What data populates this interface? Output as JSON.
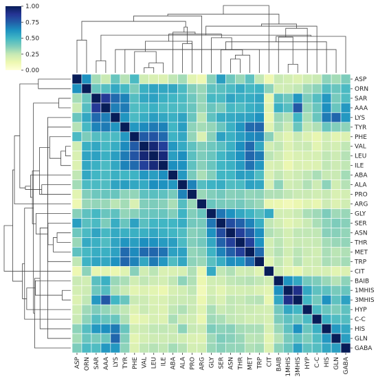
{
  "chart_data": {
    "type": "heatmap",
    "title": "",
    "xlabel": "",
    "ylabel": "",
    "labels": [
      "ASP",
      "ORN",
      "SAR",
      "AAA",
      "LYS",
      "TYR",
      "PHE",
      "VAL",
      "LEU",
      "ILE",
      "ABA",
      "ALA",
      "PRO",
      "ARG",
      "GLY",
      "SER",
      "ASN",
      "THR",
      "MET",
      "TRP",
      "CIT",
      "BAIB",
      "1MHIS",
      "3MHIS",
      "HYP",
      "C-C",
      "HIS",
      "GLN",
      "GABA"
    ],
    "colorbar": {
      "range": [
        0,
        1
      ],
      "ticks": [
        "0.00",
        "0.25",
        "0.50",
        "0.75",
        "1.00"
      ],
      "colormap": "YlGnBu",
      "stops": [
        "#ffffd9",
        "#edf8b1",
        "#c7e9b4",
        "#7fcdbb",
        "#41b6c4",
        "#1d91c0",
        "#225ea8",
        "#253494",
        "#081d58"
      ]
    },
    "dendrograms": {
      "row": "left",
      "col": "top"
    },
    "grid": true,
    "values": [
      [
        1.0,
        0.62,
        0.31,
        0.24,
        0.42,
        0.28,
        0.48,
        0.22,
        0.19,
        0.18,
        0.26,
        0.31,
        0.16,
        0.12,
        0.36,
        0.58,
        0.41,
        0.33,
        0.44,
        0.26,
        0.12,
        0.24,
        0.21,
        0.18,
        0.22,
        0.24,
        0.35,
        0.31,
        0.38
      ],
      [
        0.62,
        1.0,
        0.42,
        0.46,
        0.55,
        0.49,
        0.38,
        0.52,
        0.56,
        0.55,
        0.55,
        0.48,
        0.37,
        0.33,
        0.44,
        0.45,
        0.48,
        0.54,
        0.49,
        0.51,
        0.35,
        0.22,
        0.23,
        0.26,
        0.32,
        0.35,
        0.46,
        0.42,
        0.48
      ],
      [
        0.31,
        0.42,
        1.0,
        0.86,
        0.72,
        0.66,
        0.46,
        0.55,
        0.57,
        0.52,
        0.5,
        0.48,
        0.41,
        0.34,
        0.49,
        0.48,
        0.56,
        0.52,
        0.53,
        0.56,
        0.14,
        0.45,
        0.41,
        0.6,
        0.38,
        0.46,
        0.6,
        0.39,
        0.47
      ],
      [
        0.24,
        0.46,
        0.86,
        1.0,
        0.67,
        0.68,
        0.47,
        0.49,
        0.52,
        0.48,
        0.48,
        0.47,
        0.42,
        0.33,
        0.42,
        0.38,
        0.49,
        0.47,
        0.52,
        0.55,
        0.16,
        0.52,
        0.46,
        0.77,
        0.34,
        0.42,
        0.63,
        0.42,
        0.6
      ],
      [
        0.42,
        0.55,
        0.72,
        0.67,
        1.0,
        0.61,
        0.48,
        0.53,
        0.58,
        0.55,
        0.52,
        0.56,
        0.42,
        0.27,
        0.44,
        0.53,
        0.54,
        0.56,
        0.57,
        0.62,
        0.13,
        0.33,
        0.29,
        0.5,
        0.3,
        0.42,
        0.68,
        0.73,
        0.6
      ],
      [
        0.28,
        0.49,
        0.66,
        0.68,
        0.61,
        1.0,
        0.6,
        0.64,
        0.68,
        0.66,
        0.5,
        0.58,
        0.35,
        0.31,
        0.34,
        0.42,
        0.52,
        0.61,
        0.72,
        0.73,
        0.17,
        0.3,
        0.24,
        0.42,
        0.26,
        0.29,
        0.42,
        0.37,
        0.35
      ],
      [
        0.48,
        0.38,
        0.46,
        0.47,
        0.48,
        0.6,
        1.0,
        0.76,
        0.78,
        0.72,
        0.51,
        0.55,
        0.34,
        0.19,
        0.36,
        0.57,
        0.52,
        0.58,
        0.64,
        0.66,
        0.36,
        0.22,
        0.16,
        0.24,
        0.18,
        0.14,
        0.22,
        0.16,
        0.18
      ],
      [
        0.22,
        0.52,
        0.55,
        0.49,
        0.53,
        0.64,
        0.76,
        1.0,
        0.94,
        0.84,
        0.6,
        0.54,
        0.44,
        0.37,
        0.41,
        0.45,
        0.52,
        0.63,
        0.72,
        0.55,
        0.22,
        0.26,
        0.18,
        0.23,
        0.24,
        0.16,
        0.23,
        0.21,
        0.26
      ],
      [
        0.19,
        0.56,
        0.57,
        0.52,
        0.58,
        0.68,
        0.78,
        0.94,
        1.0,
        0.93,
        0.58,
        0.63,
        0.45,
        0.38,
        0.42,
        0.5,
        0.55,
        0.62,
        0.73,
        0.68,
        0.27,
        0.23,
        0.16,
        0.19,
        0.2,
        0.2,
        0.26,
        0.23,
        0.28
      ],
      [
        0.18,
        0.55,
        0.52,
        0.48,
        0.55,
        0.66,
        0.72,
        0.84,
        0.93,
        1.0,
        0.63,
        0.62,
        0.44,
        0.36,
        0.42,
        0.5,
        0.52,
        0.59,
        0.7,
        0.6,
        0.19,
        0.21,
        0.13,
        0.19,
        0.18,
        0.18,
        0.26,
        0.23,
        0.26
      ],
      [
        0.26,
        0.55,
        0.5,
        0.48,
        0.52,
        0.5,
        0.51,
        0.6,
        0.58,
        0.63,
        1.0,
        0.6,
        0.39,
        0.3,
        0.37,
        0.5,
        0.5,
        0.58,
        0.57,
        0.47,
        0.19,
        0.26,
        0.2,
        0.23,
        0.26,
        0.3,
        0.25,
        0.24,
        0.31
      ],
      [
        0.31,
        0.48,
        0.48,
        0.47,
        0.56,
        0.58,
        0.55,
        0.54,
        0.63,
        0.62,
        0.6,
        1.0,
        0.66,
        0.46,
        0.51,
        0.53,
        0.47,
        0.48,
        0.57,
        0.55,
        0.2,
        0.35,
        0.22,
        0.24,
        0.29,
        0.23,
        0.35,
        0.22,
        0.28
      ],
      [
        0.16,
        0.37,
        0.41,
        0.42,
        0.42,
        0.35,
        0.34,
        0.44,
        0.45,
        0.44,
        0.39,
        0.66,
        1.0,
        0.33,
        0.37,
        0.4,
        0.36,
        0.37,
        0.34,
        0.35,
        0.29,
        0.29,
        0.26,
        0.24,
        0.24,
        0.22,
        0.25,
        0.19,
        0.21
      ],
      [
        0.12,
        0.33,
        0.34,
        0.33,
        0.27,
        0.31,
        0.19,
        0.37,
        0.38,
        0.36,
        0.3,
        0.46,
        0.33,
        1.0,
        0.42,
        0.39,
        0.38,
        0.4,
        0.36,
        0.33,
        0.14,
        0.13,
        0.1,
        0.13,
        0.17,
        0.14,
        0.23,
        0.18,
        0.22
      ],
      [
        0.36,
        0.44,
        0.49,
        0.42,
        0.44,
        0.34,
        0.36,
        0.41,
        0.42,
        0.42,
        0.37,
        0.51,
        0.37,
        0.42,
        1.0,
        0.69,
        0.62,
        0.55,
        0.51,
        0.45,
        0.54,
        0.22,
        0.21,
        0.24,
        0.3,
        0.32,
        0.38,
        0.32,
        0.33
      ],
      [
        0.58,
        0.45,
        0.48,
        0.38,
        0.53,
        0.42,
        0.57,
        0.45,
        0.5,
        0.5,
        0.5,
        0.53,
        0.4,
        0.39,
        0.69,
        1.0,
        0.8,
        0.74,
        0.66,
        0.53,
        0.26,
        0.22,
        0.16,
        0.19,
        0.24,
        0.3,
        0.35,
        0.38,
        0.36
      ],
      [
        0.41,
        0.48,
        0.56,
        0.49,
        0.54,
        0.52,
        0.52,
        0.52,
        0.55,
        0.52,
        0.5,
        0.47,
        0.36,
        0.38,
        0.62,
        0.8,
        1.0,
        0.84,
        0.75,
        0.63,
        0.29,
        0.26,
        0.21,
        0.26,
        0.26,
        0.26,
        0.36,
        0.36,
        0.34
      ],
      [
        0.33,
        0.54,
        0.52,
        0.47,
        0.56,
        0.61,
        0.58,
        0.63,
        0.62,
        0.59,
        0.58,
        0.48,
        0.37,
        0.4,
        0.55,
        0.74,
        0.84,
        1.0,
        0.84,
        0.62,
        0.22,
        0.27,
        0.21,
        0.25,
        0.24,
        0.25,
        0.31,
        0.33,
        0.34
      ],
      [
        0.44,
        0.49,
        0.53,
        0.52,
        0.57,
        0.72,
        0.64,
        0.72,
        0.73,
        0.7,
        0.57,
        0.57,
        0.34,
        0.36,
        0.51,
        0.66,
        0.75,
        0.84,
        1.0,
        0.72,
        0.23,
        0.28,
        0.22,
        0.27,
        0.24,
        0.22,
        0.3,
        0.27,
        0.29
      ],
      [
        0.26,
        0.51,
        0.56,
        0.55,
        0.62,
        0.73,
        0.66,
        0.55,
        0.68,
        0.6,
        0.47,
        0.55,
        0.35,
        0.33,
        0.45,
        0.53,
        0.63,
        0.62,
        0.72,
        1.0,
        0.17,
        0.26,
        0.19,
        0.28,
        0.22,
        0.23,
        0.3,
        0.28,
        0.31
      ],
      [
        0.12,
        0.35,
        0.14,
        0.16,
        0.13,
        0.17,
        0.36,
        0.22,
        0.27,
        0.19,
        0.19,
        0.2,
        0.29,
        0.14,
        0.54,
        0.26,
        0.29,
        0.22,
        0.23,
        0.17,
        1.0,
        0.22,
        0.16,
        0.14,
        0.21,
        0.2,
        0.2,
        0.16,
        0.18
      ],
      [
        0.24,
        0.22,
        0.45,
        0.52,
        0.33,
        0.3,
        0.22,
        0.26,
        0.23,
        0.21,
        0.26,
        0.35,
        0.29,
        0.13,
        0.22,
        0.22,
        0.26,
        0.27,
        0.28,
        0.26,
        0.22,
        1.0,
        0.62,
        0.55,
        0.4,
        0.38,
        0.33,
        0.28,
        0.35
      ],
      [
        0.21,
        0.23,
        0.41,
        0.46,
        0.29,
        0.24,
        0.16,
        0.18,
        0.16,
        0.13,
        0.2,
        0.22,
        0.26,
        0.1,
        0.21,
        0.16,
        0.21,
        0.21,
        0.22,
        0.19,
        0.16,
        0.62,
        1.0,
        0.9,
        0.55,
        0.44,
        0.44,
        0.39,
        0.42
      ],
      [
        0.18,
        0.26,
        0.6,
        0.77,
        0.5,
        0.42,
        0.24,
        0.23,
        0.19,
        0.19,
        0.23,
        0.24,
        0.24,
        0.13,
        0.24,
        0.19,
        0.26,
        0.25,
        0.27,
        0.28,
        0.14,
        0.55,
        0.9,
        1.0,
        0.5,
        0.4,
        0.62,
        0.44,
        0.57
      ],
      [
        0.22,
        0.32,
        0.38,
        0.34,
        0.3,
        0.26,
        0.18,
        0.24,
        0.2,
        0.18,
        0.26,
        0.29,
        0.24,
        0.17,
        0.3,
        0.24,
        0.26,
        0.24,
        0.24,
        0.22,
        0.21,
        0.4,
        0.55,
        0.5,
        1.0,
        0.48,
        0.42,
        0.38,
        0.44
      ],
      [
        0.24,
        0.35,
        0.46,
        0.42,
        0.42,
        0.29,
        0.14,
        0.16,
        0.2,
        0.18,
        0.3,
        0.23,
        0.22,
        0.14,
        0.32,
        0.3,
        0.26,
        0.25,
        0.22,
        0.23,
        0.2,
        0.38,
        0.44,
        0.4,
        0.48,
        1.0,
        0.52,
        0.47,
        0.46
      ],
      [
        0.35,
        0.46,
        0.6,
        0.63,
        0.68,
        0.42,
        0.22,
        0.23,
        0.26,
        0.26,
        0.25,
        0.35,
        0.25,
        0.23,
        0.38,
        0.35,
        0.36,
        0.31,
        0.3,
        0.3,
        0.2,
        0.33,
        0.44,
        0.62,
        0.42,
        0.52,
        1.0,
        0.6,
        0.55
      ],
      [
        0.31,
        0.42,
        0.39,
        0.42,
        0.73,
        0.37,
        0.16,
        0.21,
        0.23,
        0.23,
        0.24,
        0.22,
        0.19,
        0.18,
        0.32,
        0.38,
        0.36,
        0.33,
        0.27,
        0.28,
        0.16,
        0.28,
        0.39,
        0.44,
        0.38,
        0.47,
        0.6,
        1.0,
        0.58
      ],
      [
        0.38,
        0.48,
        0.47,
        0.6,
        0.6,
        0.35,
        0.18,
        0.26,
        0.28,
        0.26,
        0.31,
        0.28,
        0.21,
        0.22,
        0.33,
        0.36,
        0.34,
        0.34,
        0.29,
        0.31,
        0.18,
        0.35,
        0.42,
        0.57,
        0.44,
        0.46,
        0.55,
        0.58,
        1.0
      ]
    ]
  }
}
